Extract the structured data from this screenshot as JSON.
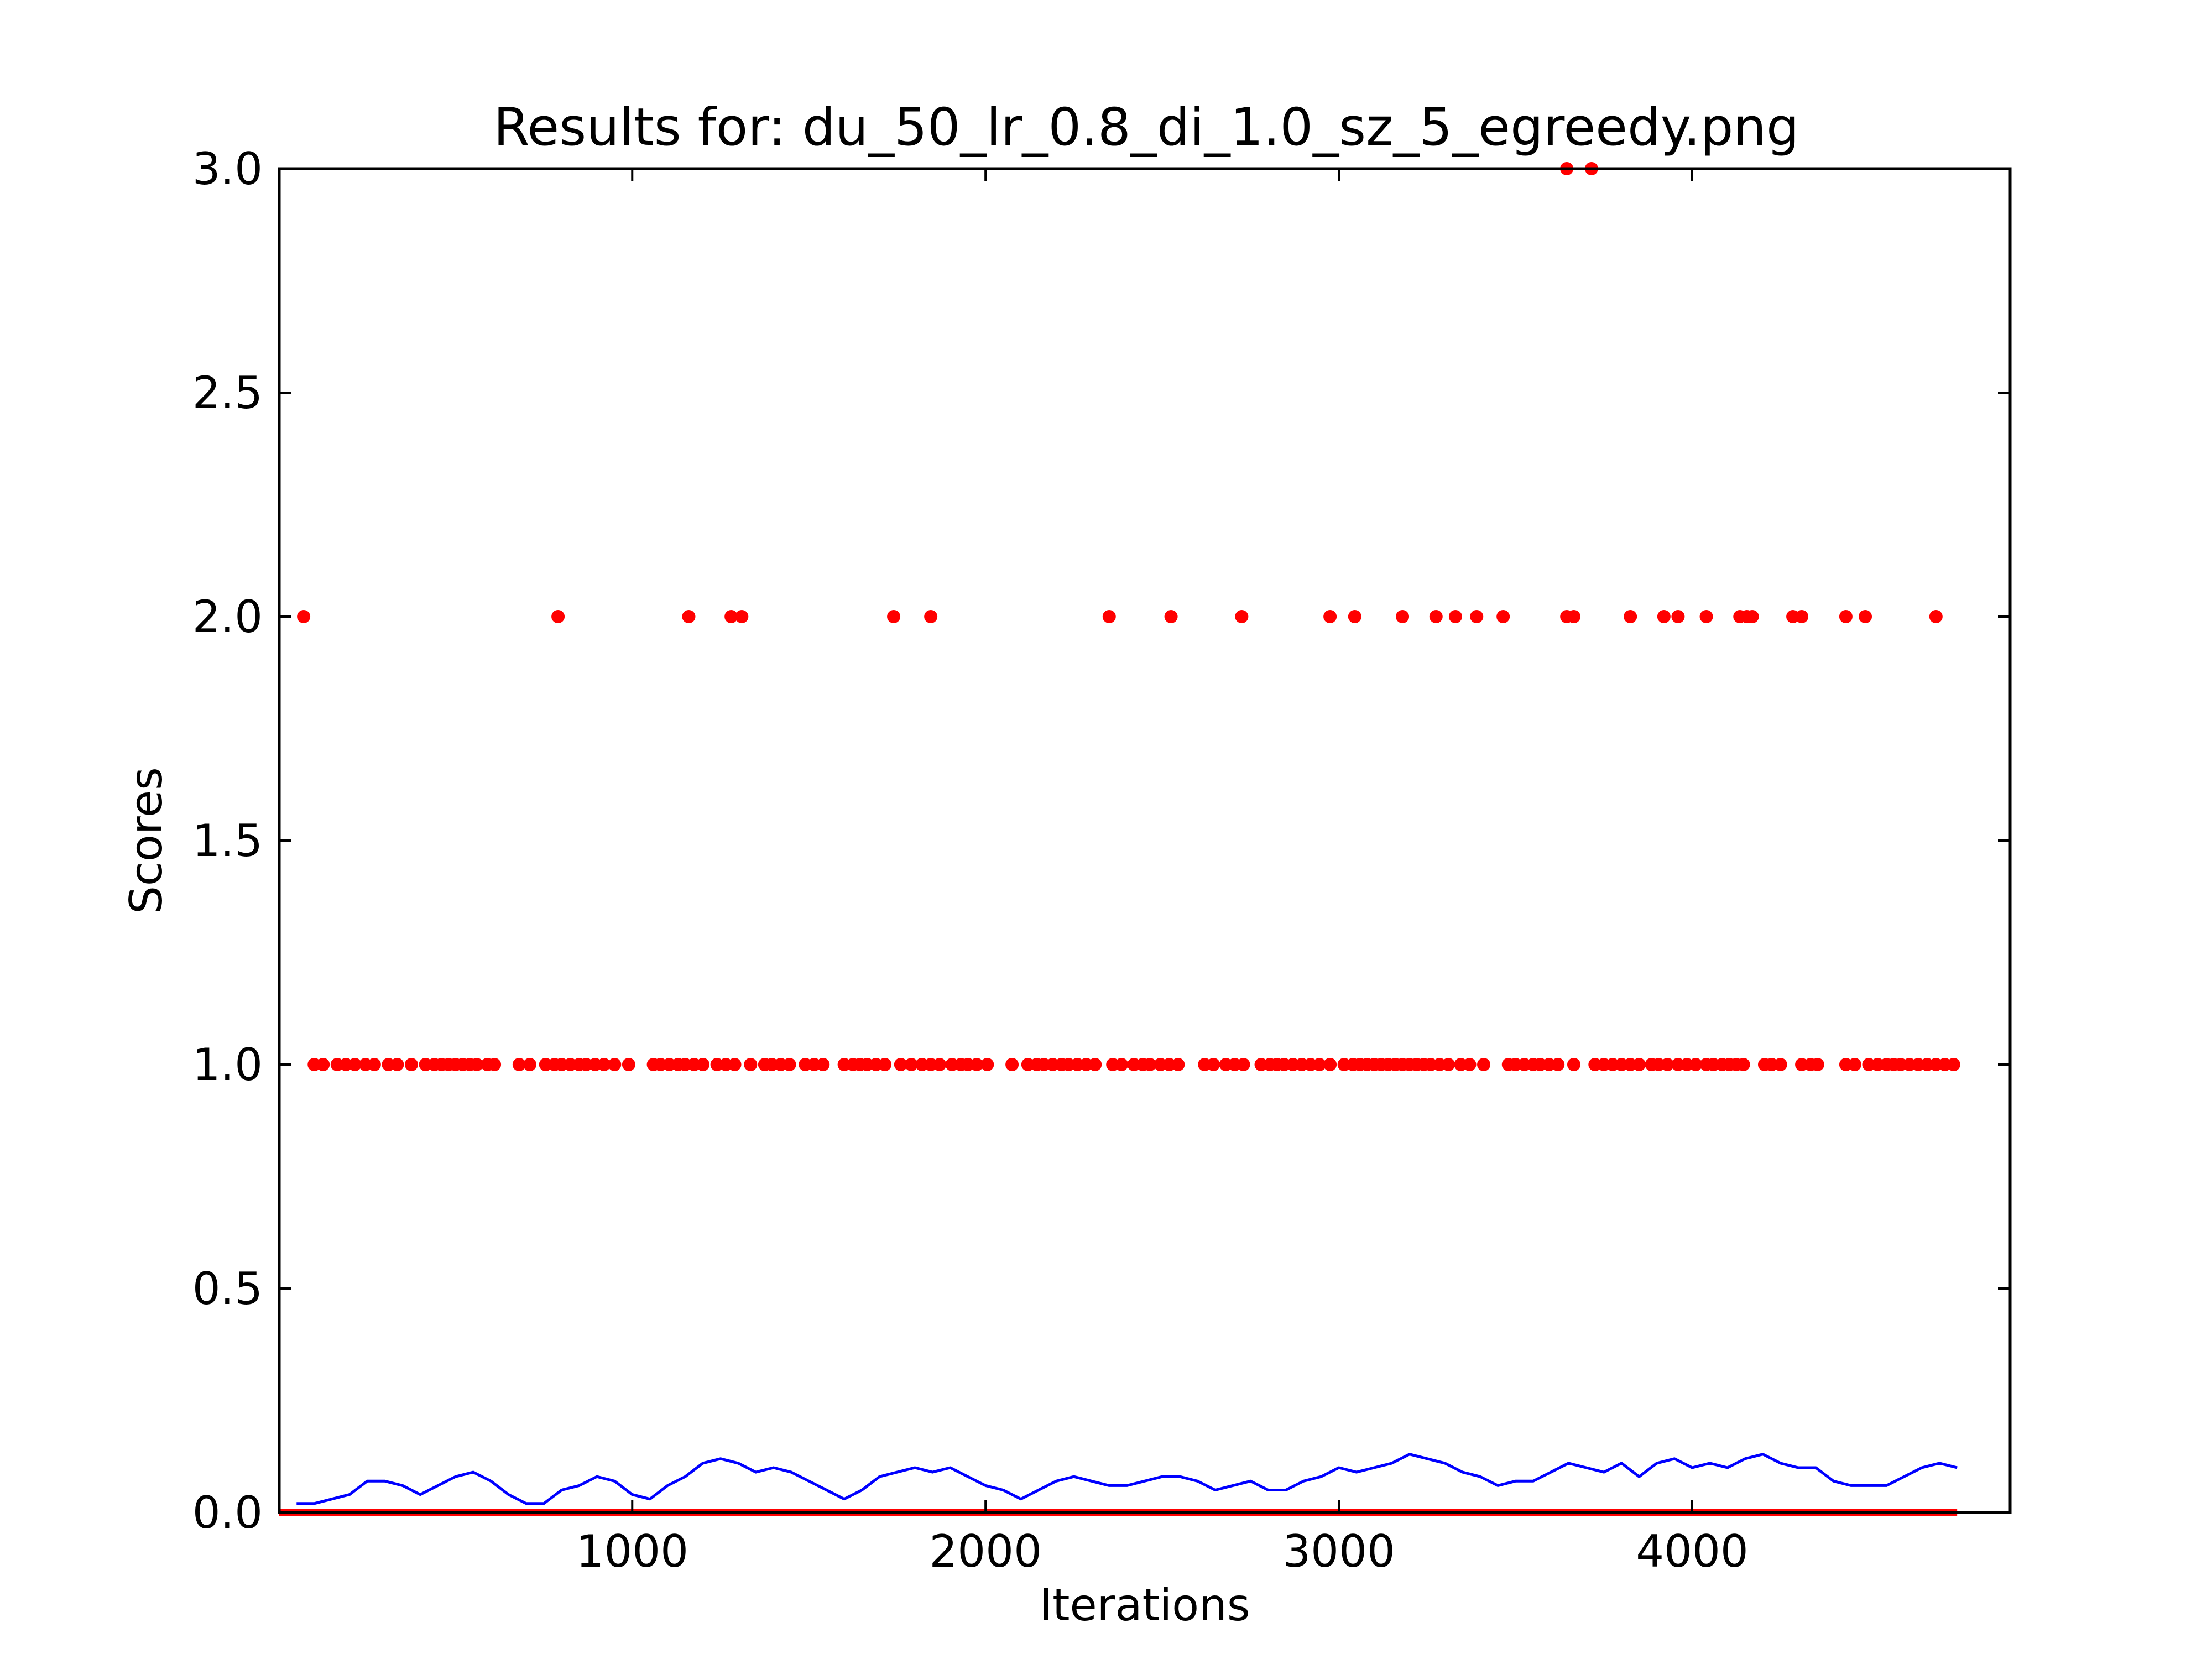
{
  "chart_data": {
    "type": "scatter",
    "title": "Results for: du_50_lr_0.8_di_1.0_sz_5_egreedy.png",
    "xlabel": "Iterations",
    "ylabel": "Scores",
    "xlim": [
      1,
      4900
    ],
    "ylim": [
      0.0,
      3.0
    ],
    "xticks": [
      "1000",
      "2000",
      "3000",
      "4000"
    ],
    "xtick_values": [
      1000,
      2000,
      3000,
      4000
    ],
    "yticks": [
      "0.0",
      "0.5",
      "1.0",
      "1.5",
      "2.0",
      "2.5",
      "3.0"
    ],
    "ytick_values": [
      0.0,
      0.5,
      1.0,
      1.5,
      2.0,
      2.5,
      3.0
    ],
    "grid": false,
    "legend": "none",
    "colors": {
      "scores": "#ff0000",
      "average": "#0000ff",
      "axes": "#000000"
    },
    "series": [
      {
        "type": "scatter",
        "color": "#ff0000",
        "points": [
          [
            70,
            2
          ],
          [
            790,
            2
          ],
          [
            1160,
            2
          ],
          [
            1280,
            2
          ],
          [
            1310,
            2
          ],
          [
            1740,
            2
          ],
          [
            1845,
            2
          ],
          [
            2350,
            2
          ],
          [
            2525,
            2
          ],
          [
            2725,
            2
          ],
          [
            2975,
            2
          ],
          [
            3045,
            2
          ],
          [
            3180,
            2
          ],
          [
            3275,
            2
          ],
          [
            3330,
            2
          ],
          [
            3390,
            2
          ],
          [
            3465,
            2
          ],
          [
            3645,
            2
          ],
          [
            3665,
            2
          ],
          [
            3825,
            2
          ],
          [
            3920,
            2
          ],
          [
            3960,
            2
          ],
          [
            4040,
            2
          ],
          [
            4135,
            2
          ],
          [
            4155,
            2
          ],
          [
            4170,
            2
          ],
          [
            4285,
            2
          ],
          [
            4310,
            2
          ],
          [
            4435,
            2
          ],
          [
            4490,
            2
          ],
          [
            4690,
            2
          ],
          [
            3645,
            3
          ],
          [
            3715,
            3
          ],
          [
            100,
            1
          ],
          [
            125,
            1
          ],
          [
            165,
            1
          ],
          [
            190,
            1
          ],
          [
            215,
            1
          ],
          [
            245,
            1
          ],
          [
            270,
            1
          ],
          [
            310,
            1
          ],
          [
            335,
            1
          ],
          [
            375,
            1
          ],
          [
            415,
            1
          ],
          [
            440,
            1
          ],
          [
            460,
            1
          ],
          [
            480,
            1
          ],
          [
            500,
            1
          ],
          [
            520,
            1
          ],
          [
            540,
            1
          ],
          [
            560,
            1
          ],
          [
            590,
            1
          ],
          [
            610,
            1
          ],
          [
            680,
            1
          ],
          [
            710,
            1
          ],
          [
            755,
            1
          ],
          [
            780,
            1
          ],
          [
            800,
            1
          ],
          [
            825,
            1
          ],
          [
            850,
            1
          ],
          [
            870,
            1
          ],
          [
            895,
            1
          ],
          [
            920,
            1
          ],
          [
            950,
            1
          ],
          [
            990,
            1
          ],
          [
            1060,
            1
          ],
          [
            1080,
            1
          ],
          [
            1105,
            1
          ],
          [
            1130,
            1
          ],
          [
            1150,
            1
          ],
          [
            1175,
            1
          ],
          [
            1200,
            1
          ],
          [
            1240,
            1
          ],
          [
            1265,
            1
          ],
          [
            1290,
            1
          ],
          [
            1335,
            1
          ],
          [
            1375,
            1
          ],
          [
            1395,
            1
          ],
          [
            1420,
            1
          ],
          [
            1445,
            1
          ],
          [
            1490,
            1
          ],
          [
            1515,
            1
          ],
          [
            1540,
            1
          ],
          [
            1600,
            1
          ],
          [
            1625,
            1
          ],
          [
            1645,
            1
          ],
          [
            1665,
            1
          ],
          [
            1690,
            1
          ],
          [
            1715,
            1
          ],
          [
            1760,
            1
          ],
          [
            1790,
            1
          ],
          [
            1820,
            1
          ],
          [
            1845,
            1
          ],
          [
            1870,
            1
          ],
          [
            1905,
            1
          ],
          [
            1930,
            1
          ],
          [
            1950,
            1
          ],
          [
            1975,
            1
          ],
          [
            2005,
            1
          ],
          [
            2075,
            1
          ],
          [
            2120,
            1
          ],
          [
            2145,
            1
          ],
          [
            2165,
            1
          ],
          [
            2190,
            1
          ],
          [
            2215,
            1
          ],
          [
            2235,
            1
          ],
          [
            2260,
            1
          ],
          [
            2285,
            1
          ],
          [
            2310,
            1
          ],
          [
            2360,
            1
          ],
          [
            2385,
            1
          ],
          [
            2420,
            1
          ],
          [
            2445,
            1
          ],
          [
            2465,
            1
          ],
          [
            2495,
            1
          ],
          [
            2520,
            1
          ],
          [
            2545,
            1
          ],
          [
            2620,
            1
          ],
          [
            2645,
            1
          ],
          [
            2680,
            1
          ],
          [
            2705,
            1
          ],
          [
            2730,
            1
          ],
          [
            2780,
            1
          ],
          [
            2805,
            1
          ],
          [
            2825,
            1
          ],
          [
            2845,
            1
          ],
          [
            2870,
            1
          ],
          [
            2895,
            1
          ],
          [
            2920,
            1
          ],
          [
            2945,
            1
          ],
          [
            2975,
            1
          ],
          [
            3015,
            1
          ],
          [
            3040,
            1
          ],
          [
            3060,
            1
          ],
          [
            3080,
            1
          ],
          [
            3100,
            1
          ],
          [
            3120,
            1
          ],
          [
            3140,
            1
          ],
          [
            3160,
            1
          ],
          [
            3180,
            1
          ],
          [
            3200,
            1
          ],
          [
            3220,
            1
          ],
          [
            3240,
            1
          ],
          [
            3260,
            1
          ],
          [
            3285,
            1
          ],
          [
            3310,
            1
          ],
          [
            3345,
            1
          ],
          [
            3370,
            1
          ],
          [
            3410,
            1
          ],
          [
            3480,
            1
          ],
          [
            3500,
            1
          ],
          [
            3525,
            1
          ],
          [
            3550,
            1
          ],
          [
            3570,
            1
          ],
          [
            3595,
            1
          ],
          [
            3620,
            1
          ],
          [
            3665,
            1
          ],
          [
            3725,
            1
          ],
          [
            3750,
            1
          ],
          [
            3775,
            1
          ],
          [
            3800,
            1
          ],
          [
            3825,
            1
          ],
          [
            3850,
            1
          ],
          [
            3885,
            1
          ],
          [
            3905,
            1
          ],
          [
            3930,
            1
          ],
          [
            3960,
            1
          ],
          [
            3985,
            1
          ],
          [
            4010,
            1
          ],
          [
            4040,
            1
          ],
          [
            4060,
            1
          ],
          [
            4085,
            1
          ],
          [
            4105,
            1
          ],
          [
            4125,
            1
          ],
          [
            4145,
            1
          ],
          [
            4205,
            1
          ],
          [
            4225,
            1
          ],
          [
            4250,
            1
          ],
          [
            4310,
            1
          ],
          [
            4335,
            1
          ],
          [
            4355,
            1
          ],
          [
            4435,
            1
          ],
          [
            4460,
            1
          ],
          [
            4500,
            1
          ],
          [
            4525,
            1
          ],
          [
            4550,
            1
          ],
          [
            4570,
            1
          ],
          [
            4590,
            1
          ],
          [
            4615,
            1
          ],
          [
            4640,
            1
          ],
          [
            4665,
            1
          ],
          [
            4690,
            1
          ],
          [
            4715,
            1
          ],
          [
            4740,
            1
          ]
        ],
        "baseline_zero_x_range": [
          1,
          4750
        ]
      },
      {
        "type": "line",
        "color": "#0000ff",
        "x": [
          50,
          100,
          150,
          200,
          250,
          300,
          350,
          400,
          450,
          500,
          550,
          600,
          650,
          700,
          750,
          800,
          850,
          900,
          950,
          1000,
          1050,
          1100,
          1150,
          1200,
          1250,
          1300,
          1350,
          1400,
          1450,
          1500,
          1550,
          1600,
          1650,
          1700,
          1750,
          1800,
          1850,
          1900,
          1950,
          2000,
          2050,
          2100,
          2150,
          2200,
          2250,
          2300,
          2350,
          2400,
          2450,
          2500,
          2550,
          2600,
          2650,
          2700,
          2750,
          2800,
          2850,
          2900,
          2950,
          3000,
          3050,
          3100,
          3150,
          3200,
          3250,
          3300,
          3350,
          3400,
          3450,
          3500,
          3550,
          3600,
          3650,
          3700,
          3750,
          3800,
          3850,
          3900,
          3950,
          4000,
          4050,
          4100,
          4150,
          4200,
          4250,
          4300,
          4350,
          4400,
          4450,
          4500,
          4550,
          4600,
          4650,
          4700,
          4750
        ],
        "y": [
          0.02,
          0.02,
          0.03,
          0.04,
          0.07,
          0.07,
          0.06,
          0.04,
          0.06,
          0.08,
          0.09,
          0.07,
          0.04,
          0.02,
          0.02,
          0.05,
          0.06,
          0.08,
          0.07,
          0.04,
          0.03,
          0.06,
          0.08,
          0.11,
          0.12,
          0.11,
          0.09,
          0.1,
          0.09,
          0.07,
          0.05,
          0.03,
          0.05,
          0.08,
          0.09,
          0.1,
          0.09,
          0.1,
          0.08,
          0.06,
          0.05,
          0.03,
          0.05,
          0.07,
          0.08,
          0.07,
          0.06,
          0.06,
          0.07,
          0.08,
          0.08,
          0.07,
          0.05,
          0.06,
          0.07,
          0.05,
          0.05,
          0.07,
          0.08,
          0.1,
          0.09,
          0.1,
          0.11,
          0.13,
          0.12,
          0.11,
          0.09,
          0.08,
          0.06,
          0.07,
          0.07,
          0.09,
          0.11,
          0.1,
          0.09,
          0.11,
          0.08,
          0.11,
          0.12,
          0.1,
          0.11,
          0.1,
          0.12,
          0.13,
          0.11,
          0.1,
          0.1,
          0.07,
          0.06,
          0.06,
          0.06,
          0.08,
          0.1,
          0.11,
          0.1
        ]
      }
    ]
  }
}
